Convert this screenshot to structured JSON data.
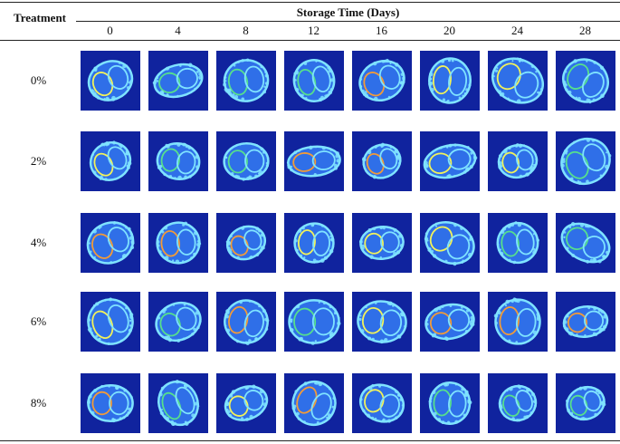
{
  "table": {
    "treatment_header": "Treatment",
    "group_header": "Storage Time (Days)",
    "days": [
      "0",
      "4",
      "8",
      "12",
      "16",
      "20",
      "24",
      "28"
    ],
    "treatments": [
      "0%",
      "2%",
      "4%",
      "6%",
      "8%"
    ]
  },
  "colors": {
    "image_background": "#10239e",
    "outline_cyan": "#7fe3ff",
    "interior_blue": "#2f6fe8",
    "highlight_yellow": "#f1f25a",
    "highlight_orange": "#f29b38",
    "highlight_green": "#56e08c"
  }
}
